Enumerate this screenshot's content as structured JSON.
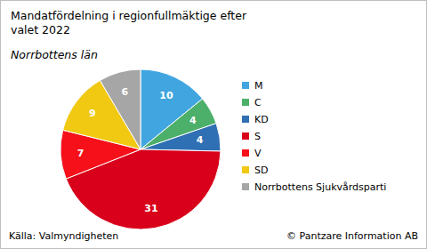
{
  "chart_data": {
    "type": "pie",
    "title": "Mandatfördelning i regionfullmäktige efter valet 2022",
    "subtitle": "Norrbottens län",
    "categories": [
      "M",
      "C",
      "KD",
      "S",
      "V",
      "SD",
      "Norrbottens Sjukvårdsparti"
    ],
    "values": [
      10,
      4,
      4,
      31,
      7,
      9,
      6
    ],
    "colors": [
      "#41a6e0",
      "#4caf6a",
      "#2f6fb3",
      "#d9001b",
      "#f5101a",
      "#f1c912",
      "#a6a6a6"
    ],
    "data_labels": true,
    "legend": "right",
    "source": "Källa: Valmyndigheten",
    "copyright": "© Pantzare Information AB"
  }
}
